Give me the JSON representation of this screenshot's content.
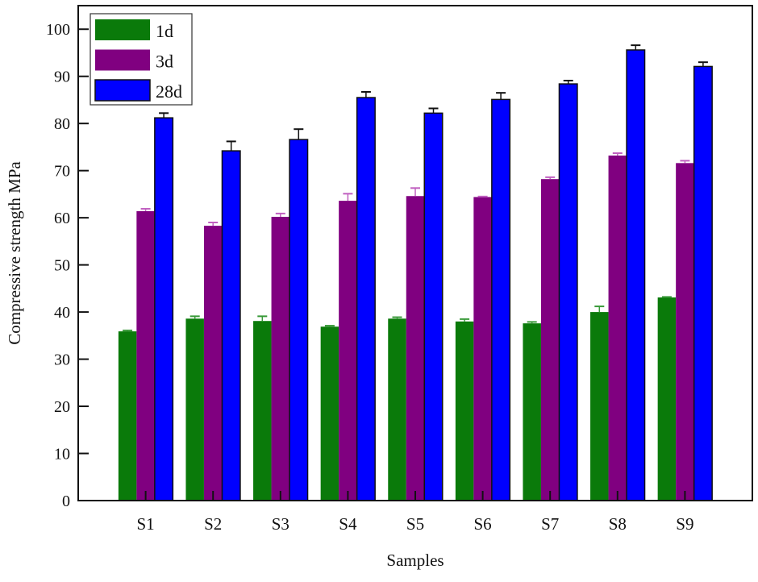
{
  "chart_data": {
    "type": "bar",
    "title": "",
    "xlabel": "Samples",
    "ylabel": "Compressive strength MPa",
    "categories": [
      "S1",
      "S2",
      "S3",
      "S4",
      "S5",
      "S6",
      "S7",
      "S8",
      "S9"
    ],
    "ylim": [
      0,
      105
    ],
    "yticks": [
      0,
      10,
      20,
      30,
      40,
      50,
      60,
      70,
      80,
      90,
      100
    ],
    "grid": false,
    "legend_position": "top-left",
    "series": [
      {
        "name": "1d",
        "color": "#0a7a0a",
        "values": [
          35.9,
          38.6,
          38.1,
          36.9,
          38.6,
          38.0,
          37.6,
          40.0,
          43.1
        ],
        "errors": [
          0.2,
          0.5,
          1.0,
          0.2,
          0.3,
          0.5,
          0.3,
          1.2,
          0.1
        ]
      },
      {
        "name": "3d",
        "color": "#800080",
        "values": [
          61.4,
          58.3,
          60.2,
          63.6,
          64.6,
          64.4,
          68.2,
          73.2,
          71.6
        ],
        "errors": [
          0.5,
          0.7,
          0.7,
          1.5,
          1.7,
          0.1,
          0.4,
          0.5,
          0.5
        ]
      },
      {
        "name": "28d",
        "color": "#0000ff",
        "values": [
          81.2,
          74.2,
          76.6,
          85.5,
          82.2,
          85.1,
          88.4,
          95.6,
          92.1
        ],
        "errors": [
          1.0,
          2.0,
          2.2,
          1.2,
          1.0,
          1.4,
          0.7,
          1.0,
          0.9
        ]
      }
    ]
  }
}
